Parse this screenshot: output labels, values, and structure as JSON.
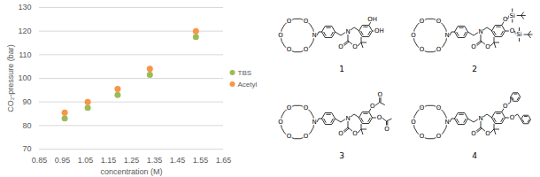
{
  "chart_data": {
    "type": "scatter",
    "xlabel": "concentration (M)",
    "ylabel": "CO₂-pressure (bar)",
    "x": [
      0.96,
      1.06,
      1.19,
      1.33,
      1.53
    ],
    "series": [
      {
        "name": "TBS",
        "color": "#9bbb59",
        "values": [
          83,
          87.5,
          93,
          101.5,
          117.5
        ]
      },
      {
        "name": "Acetyl",
        "color": "#f79646",
        "values": [
          85.5,
          90,
          95.5,
          104,
          120
        ]
      }
    ],
    "xlim": [
      0.85,
      1.65
    ],
    "xticks": [
      0.85,
      0.95,
      1.05,
      1.15,
      1.25,
      1.35,
      1.45,
      1.55,
      1.65
    ],
    "ylim": [
      70,
      130
    ],
    "yticks": [
      70,
      80,
      90,
      100,
      110,
      120,
      130
    ],
    "grid": true,
    "legend": "right",
    "marker": "circle"
  },
  "structures": [
    {
      "label": "1",
      "ring_oxygens": [
        "O",
        "O",
        "O",
        "O",
        "O"
      ],
      "ring_nitrogen": "N",
      "carbamate": [
        "N",
        "O",
        "O"
      ],
      "substituents": [
        [
          "OH"
        ],
        [
          "OH"
        ]
      ]
    },
    {
      "label": "2",
      "ring_oxygens": [
        "O",
        "O",
        "O",
        "O",
        "O"
      ],
      "ring_nitrogen": "N",
      "carbamate": [
        "N",
        "O",
        "O"
      ],
      "substituents": [
        [
          "O",
          "Si"
        ],
        [
          "O",
          "Si"
        ]
      ]
    },
    {
      "label": "3",
      "ring_oxygens": [
        "O",
        "O",
        "O",
        "O",
        "O"
      ],
      "ring_nitrogen": "N",
      "carbamate": [
        "N",
        "O",
        "O"
      ],
      "substituents": [
        [
          "O",
          "O"
        ],
        [
          "O",
          "O"
        ]
      ]
    },
    {
      "label": "4",
      "ring_oxygens": [
        "O",
        "O",
        "O",
        "O",
        "O"
      ],
      "ring_nitrogen": "N",
      "carbamate": [
        "N",
        "O",
        "O"
      ],
      "substituents": [
        [
          "O"
        ],
        [
          "O"
        ]
      ]
    }
  ]
}
